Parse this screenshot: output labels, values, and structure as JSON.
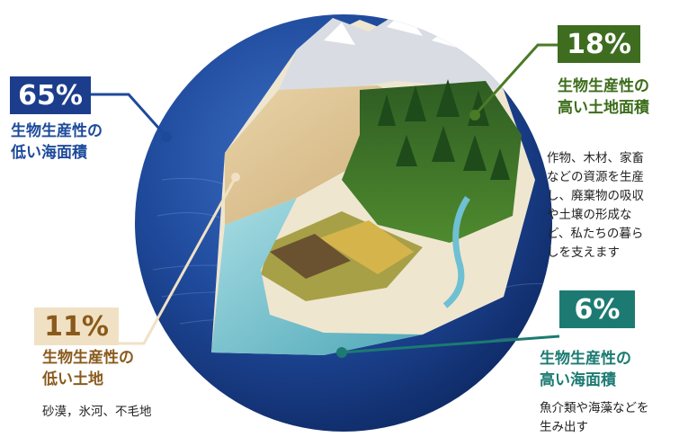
{
  "regions": {
    "low_ocean": {
      "percent": "65%",
      "title_lines": [
        "生物生産性の",
        "低い海面積"
      ],
      "color": "#1c3d8c"
    },
    "high_land": {
      "percent": "18%",
      "title_lines": [
        "生物生産性の",
        "高い土地面積"
      ],
      "desc_lines": [
        "作物、木材、家畜",
        "などの資源を生産",
        "し、廃棄物の吸収",
        "や土壌の形成な",
        "ど、私たちの暮ら",
        "しを支えます"
      ],
      "color": "#3e6d1f"
    },
    "low_land": {
      "percent": "11%",
      "title_lines": [
        "生物生産性の",
        "低い土地"
      ],
      "desc_lines": [
        "砂漠，氷河、不毛地"
      ],
      "color": "#8a5a1c"
    },
    "high_ocean": {
      "percent": "6%",
      "title_lines": [
        "生物生産性の",
        "高い海面積"
      ],
      "desc_lines": [
        "魚介類や海藻などを",
        "生み出す"
      ],
      "color": "#1d7a72"
    }
  }
}
